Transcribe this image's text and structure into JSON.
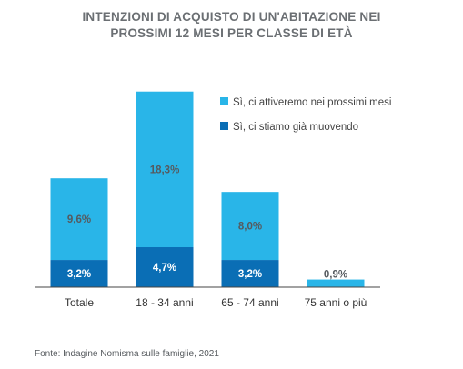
{
  "colors": {
    "light": "#29b5e8",
    "dark": "#0a6eb5",
    "axis": "#444444",
    "title": "#6b6f73",
    "label_on_light": "#555a5f",
    "label_on_dark": "#ffffff"
  },
  "chart_data": {
    "type": "bar",
    "stacked": true,
    "title_lines": [
      "INTENZIONI DI ACQUISTO DI UN'ABITAZIONE NEI",
      "PROSSIMI 12 MESI PER CLASSE DI ETÀ"
    ],
    "categories": [
      "Totale",
      "18 - 34 anni",
      "65 - 74 anni",
      "75 anni o più"
    ],
    "series": [
      {
        "name": "Sì, ci stiamo già muovendo",
        "values": [
          3.2,
          4.7,
          3.2,
          null
        ],
        "labels": [
          "3,2%",
          "4,7%",
          "3,2%",
          ""
        ]
      },
      {
        "name": "Sì, ci attiveremo nei prossimi mesi",
        "values": [
          9.6,
          18.3,
          8.0,
          0.9
        ],
        "labels": [
          "9,6%",
          "18,3%",
          "8,0%",
          "0,9%"
        ]
      }
    ],
    "legend_position": "top-right",
    "grid": false
  },
  "source": "Fonte: Indagine Nomisma sulle famiglie, 2021"
}
